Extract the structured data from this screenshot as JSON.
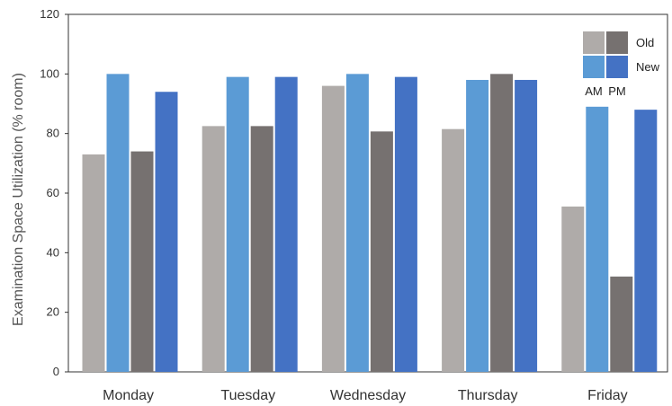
{
  "chart_data": {
    "type": "bar",
    "categories": [
      "Monday",
      "Tuesday",
      "Wednesday",
      "Thursday",
      "Friday"
    ],
    "series": [
      {
        "key": "old_am",
        "color": "#afaba9",
        "values": [
          73,
          82.5,
          96,
          81.5,
          55.5
        ]
      },
      {
        "key": "new_am",
        "color": "#5b9bd5",
        "values": [
          100,
          99,
          100,
          98,
          89
        ]
      },
      {
        "key": "old_pm",
        "color": "#767170",
        "values": [
          74,
          82.5,
          80.7,
          100,
          32
        ]
      },
      {
        "key": "new_pm",
        "color": "#4472c4",
        "values": [
          94,
          99,
          99,
          98,
          88
        ]
      }
    ],
    "ylabel": "Examination Space Utilization (% room)",
    "xlabel": "",
    "ylim": [
      0,
      120
    ],
    "yticks": [
      0,
      20,
      40,
      60,
      80,
      100,
      120
    ],
    "grid": false,
    "legend": {
      "placement": "top-right",
      "rows": [
        "Old",
        "New"
      ],
      "columns": [
        "AM",
        "PM"
      ]
    }
  }
}
